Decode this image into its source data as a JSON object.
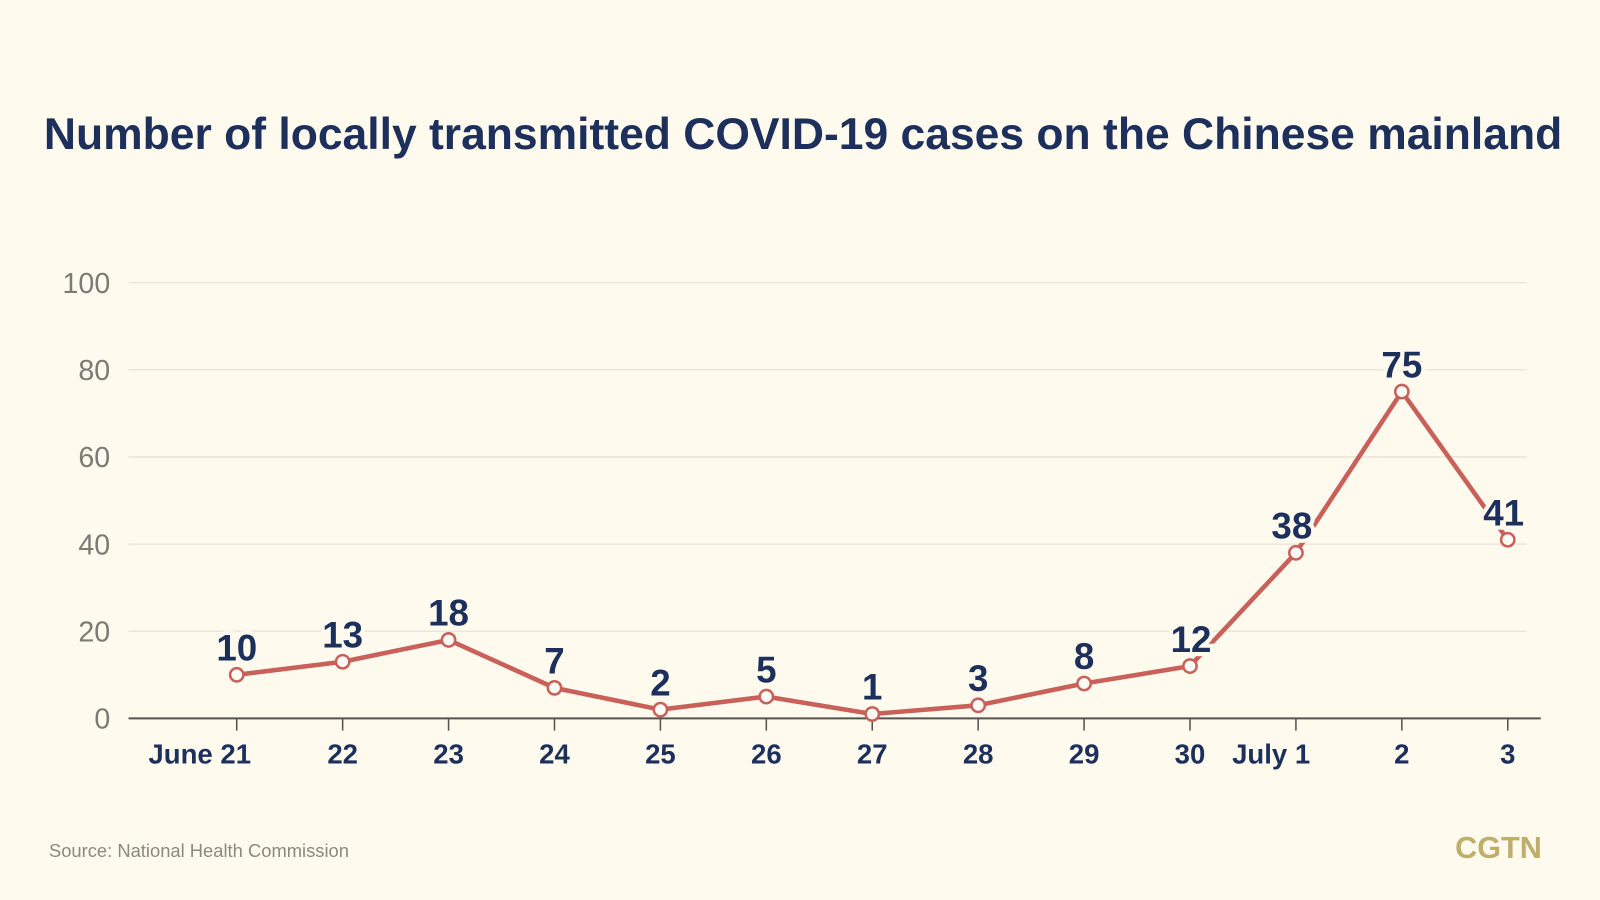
{
  "chart_data": {
    "type": "line",
    "title": "Number of locally transmitted COVID-19 cases on the Chinese mainland",
    "categories": [
      "June 21",
      "22",
      "23",
      "24",
      "25",
      "26",
      "27",
      "28",
      "29",
      "30",
      "July 1",
      "2",
      "3"
    ],
    "values": [
      10,
      13,
      18,
      7,
      2,
      5,
      1,
      3,
      8,
      12,
      38,
      75,
      41
    ],
    "xlabel": "",
    "ylabel": "",
    "ylim": [
      0,
      100
    ],
    "yticks": [
      0,
      20,
      40,
      60,
      80,
      100
    ],
    "grid": true,
    "legend": "none",
    "line_color": "#c9605a",
    "label_color": "#1d2f5b"
  },
  "footer": {
    "source": "Source: National Health Commission",
    "logo": "CGTN"
  }
}
